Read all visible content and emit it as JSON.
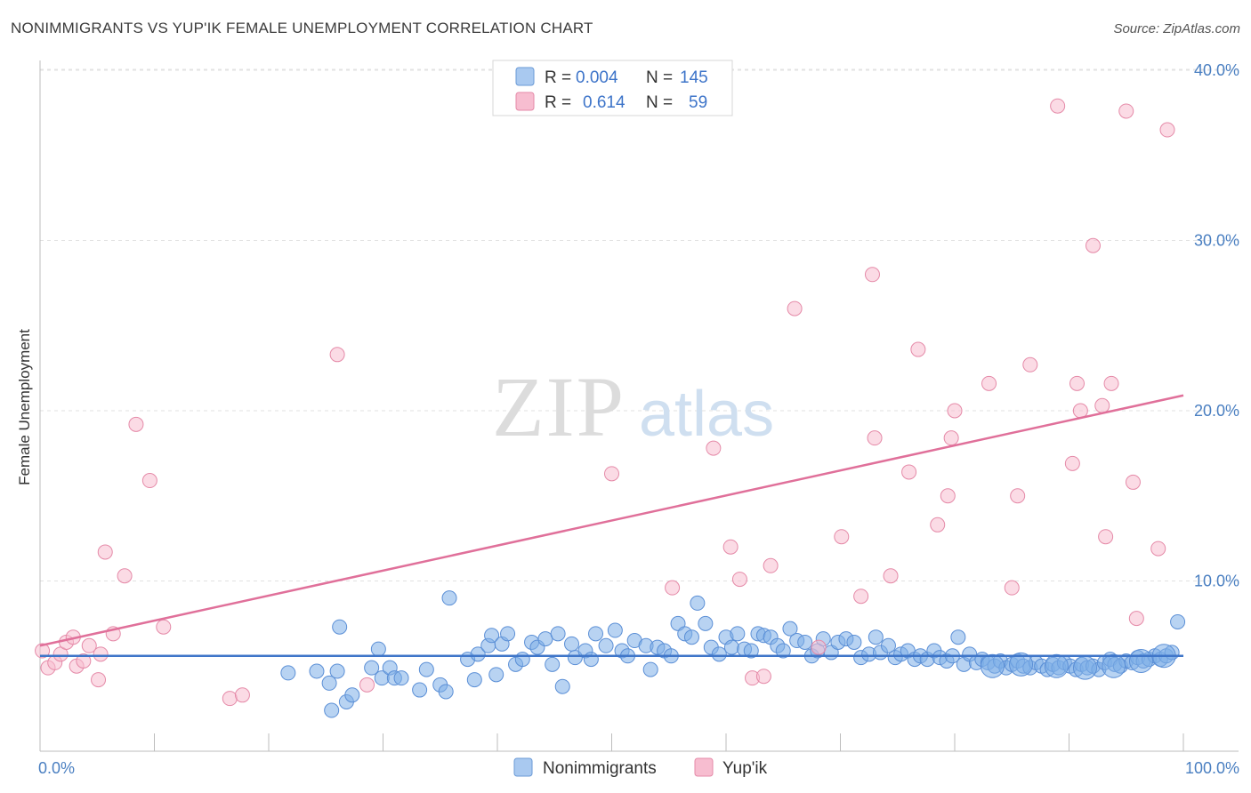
{
  "header": {
    "title": "NONIMMIGRANTS VS YUP'IK FEMALE UNEMPLOYMENT CORRELATION CHART",
    "source": "Source: ZipAtlas.com"
  },
  "watermark": {
    "zip": "ZIP",
    "atlas": "atlas"
  },
  "legend_top": {
    "rows": [
      {
        "r_label": "R =",
        "r_value": "0.004",
        "n_label": "N =",
        "n_value": "145",
        "color": "#a9c9f0",
        "border": "#6a9ad6"
      },
      {
        "r_label": "R =",
        "r_value": "0.614",
        "n_label": "N =",
        "n_value": "59",
        "color": "#f7bdd0",
        "border": "#e58aa8"
      }
    ]
  },
  "legend_bottom": {
    "items": [
      {
        "label": "Nonimmigrants",
        "color": "#a9c9f0",
        "border": "#6a9ad6"
      },
      {
        "label": "Yup'ik",
        "color": "#f7bdd0",
        "border": "#e58aa8"
      }
    ]
  },
  "chart_data": {
    "type": "scatter",
    "title": "NONIMMIGRANTS VS YUP'IK FEMALE UNEMPLOYMENT CORRELATION CHART",
    "xlabel": "",
    "ylabel": "Female Unemployment",
    "xlim": [
      0,
      100
    ],
    "ylim": [
      0,
      42
    ],
    "x_tick_labels": [
      "0.0%",
      "100.0%"
    ],
    "y_ticks": [
      10,
      20,
      30,
      40
    ],
    "y_tick_labels": [
      "10.0%",
      "20.0%",
      "30.0%",
      "40.0%"
    ],
    "grid": true,
    "legend_position": "top-center",
    "series": [
      {
        "name": "Nonimmigrants",
        "color": "#7eaee8",
        "stroke": "#5b8fd6",
        "r": "0.004",
        "n": "145",
        "trend": {
          "x": [
            0,
            100
          ],
          "y": [
            5.6,
            5.6
          ],
          "color": "#3f76c9"
        },
        "points": [
          [
            21.7,
            4.6,
            1
          ],
          [
            24.2,
            4.7,
            1
          ],
          [
            25.3,
            4.0,
            1
          ],
          [
            26.0,
            4.7,
            1
          ],
          [
            26.2,
            7.3,
            1
          ],
          [
            25.5,
            2.4,
            1
          ],
          [
            26.8,
            2.9,
            1
          ],
          [
            27.3,
            3.3,
            1
          ],
          [
            29.0,
            4.9,
            1
          ],
          [
            29.6,
            6.0,
            1
          ],
          [
            29.9,
            4.3,
            1
          ],
          [
            30.6,
            4.9,
            1
          ],
          [
            31.0,
            4.3,
            1
          ],
          [
            31.6,
            4.3,
            1
          ],
          [
            33.2,
            3.6,
            1
          ],
          [
            33.8,
            4.8,
            1
          ],
          [
            35.0,
            3.9,
            1
          ],
          [
            35.5,
            3.5,
            1
          ],
          [
            35.8,
            9.0,
            1
          ],
          [
            37.4,
            5.4,
            1
          ],
          [
            38.0,
            4.2,
            1
          ],
          [
            38.3,
            5.7,
            1
          ],
          [
            39.2,
            6.2,
            1
          ],
          [
            39.5,
            6.8,
            1
          ],
          [
            39.9,
            4.5,
            1
          ],
          [
            40.4,
            6.3,
            1
          ],
          [
            40.9,
            6.9,
            1
          ],
          [
            41.6,
            5.1,
            1
          ],
          [
            42.2,
            5.4,
            1
          ],
          [
            43.0,
            6.4,
            1
          ],
          [
            43.5,
            6.1,
            1
          ],
          [
            44.2,
            6.6,
            1
          ],
          [
            44.8,
            5.1,
            1
          ],
          [
            45.3,
            6.9,
            1
          ],
          [
            45.7,
            3.8,
            1
          ],
          [
            46.5,
            6.3,
            1
          ],
          [
            46.8,
            5.5,
            1
          ],
          [
            47.7,
            5.9,
            1
          ],
          [
            48.2,
            5.4,
            1
          ],
          [
            48.6,
            6.9,
            1
          ],
          [
            49.5,
            6.2,
            1
          ],
          [
            50.3,
            7.1,
            1
          ],
          [
            50.9,
            5.9,
            1
          ],
          [
            51.4,
            5.6,
            1
          ],
          [
            52.0,
            6.5,
            1
          ],
          [
            53.0,
            6.2,
            1
          ],
          [
            53.4,
            4.8,
            1
          ],
          [
            54.0,
            6.1,
            1
          ],
          [
            54.6,
            5.9,
            1
          ],
          [
            55.2,
            5.6,
            1
          ],
          [
            55.8,
            7.5,
            1
          ],
          [
            56.4,
            6.9,
            1
          ],
          [
            57.0,
            6.7,
            1
          ],
          [
            57.5,
            8.7,
            1
          ],
          [
            58.2,
            7.5,
            1
          ],
          [
            58.7,
            6.1,
            1
          ],
          [
            59.4,
            5.7,
            1
          ],
          [
            60.0,
            6.7,
            1
          ],
          [
            60.5,
            6.1,
            1
          ],
          [
            61.0,
            6.9,
            1
          ],
          [
            61.6,
            6.0,
            1
          ],
          [
            62.2,
            5.9,
            1
          ],
          [
            62.8,
            6.9,
            1
          ],
          [
            63.3,
            6.8,
            1
          ],
          [
            63.9,
            6.7,
            1
          ],
          [
            64.5,
            6.2,
            1
          ],
          [
            65.0,
            5.9,
            1
          ],
          [
            65.6,
            7.2,
            1
          ],
          [
            66.2,
            6.5,
            1
          ],
          [
            66.9,
            6.4,
            1
          ],
          [
            67.5,
            5.6,
            1
          ],
          [
            68.0,
            5.9,
            1
          ],
          [
            68.5,
            6.6,
            1
          ],
          [
            69.2,
            5.8,
            1
          ],
          [
            69.8,
            6.4,
            1
          ],
          [
            70.5,
            6.6,
            1
          ],
          [
            71.2,
            6.4,
            1
          ],
          [
            71.8,
            5.5,
            1
          ],
          [
            72.5,
            5.7,
            1
          ],
          [
            73.1,
            6.7,
            1
          ],
          [
            73.5,
            5.8,
            1
          ],
          [
            74.2,
            6.2,
            1
          ],
          [
            74.8,
            5.5,
            1
          ],
          [
            75.3,
            5.7,
            1
          ],
          [
            75.9,
            5.9,
            1
          ],
          [
            76.5,
            5.4,
            1
          ],
          [
            77.0,
            5.6,
            1
          ],
          [
            77.6,
            5.4,
            1
          ],
          [
            78.2,
            5.9,
            1
          ],
          [
            78.7,
            5.5,
            1
          ],
          [
            79.3,
            5.3,
            1
          ],
          [
            79.8,
            5.6,
            1
          ],
          [
            80.3,
            6.7,
            1
          ],
          [
            80.8,
            5.1,
            1
          ],
          [
            81.3,
            5.7,
            1
          ],
          [
            81.9,
            5.2,
            1
          ],
          [
            82.4,
            5.4,
            1
          ],
          [
            82.9,
            5.2,
            1
          ],
          [
            83.5,
            5.0,
            1
          ],
          [
            84.0,
            5.3,
            1
          ],
          [
            84.5,
            4.9,
            1
          ],
          [
            85.0,
            5.1,
            1
          ],
          [
            85.5,
            5.3,
            1
          ],
          [
            86.0,
            5.0,
            1
          ],
          [
            86.6,
            4.9,
            1
          ],
          [
            87.1,
            5.2,
            1
          ],
          [
            87.6,
            5.0,
            1
          ],
          [
            88.1,
            4.8,
            1
          ],
          [
            88.6,
            5.1,
            1
          ],
          [
            89.1,
            4.9,
            1
          ],
          [
            89.6,
            5.2,
            1
          ],
          [
            90.1,
            5.0,
            1
          ],
          [
            90.6,
            4.8,
            1
          ],
          [
            91.1,
            5.1,
            1
          ],
          [
            91.6,
            4.9,
            1
          ],
          [
            92.1,
            5.0,
            1
          ],
          [
            92.6,
            4.8,
            1
          ],
          [
            93.1,
            5.2,
            1
          ],
          [
            93.6,
            5.4,
            1
          ],
          [
            94.0,
            5.1,
            1
          ],
          [
            94.5,
            5.0,
            1
          ],
          [
            95.0,
            5.3,
            1
          ],
          [
            95.5,
            5.2,
            1
          ],
          [
            96.0,
            5.5,
            1
          ],
          [
            96.5,
            5.3,
            1
          ],
          [
            97.0,
            5.4,
            1
          ],
          [
            97.5,
            5.6,
            1
          ],
          [
            98.0,
            5.4,
            1
          ],
          [
            98.5,
            5.6,
            1
          ],
          [
            99.0,
            5.8,
            1
          ],
          [
            99.5,
            7.6,
            1
          ],
          [
            83.3,
            5.0,
            2
          ],
          [
            85.8,
            5.1,
            2
          ],
          [
            88.9,
            5.0,
            2
          ],
          [
            91.4,
            4.9,
            2
          ],
          [
            93.9,
            5.0,
            2
          ],
          [
            96.3,
            5.3,
            2
          ],
          [
            98.3,
            5.6,
            2
          ]
        ]
      },
      {
        "name": "Yup'ik",
        "color": "#f7bdd0",
        "stroke": "#e58aa8",
        "r": "0.614",
        "n": "59",
        "trend": {
          "x": [
            0,
            100
          ],
          "y": [
            6.2,
            20.9
          ],
          "color": "#e0709a"
        },
        "points": [
          [
            0.2,
            5.9,
            1
          ],
          [
            0.7,
            4.9,
            1
          ],
          [
            1.3,
            5.2,
            1
          ],
          [
            1.8,
            5.7,
            1
          ],
          [
            2.3,
            6.4,
            1
          ],
          [
            2.9,
            6.7,
            1
          ],
          [
            3.2,
            5.0,
            1
          ],
          [
            3.8,
            5.3,
            1
          ],
          [
            4.3,
            6.2,
            1
          ],
          [
            5.1,
            4.2,
            1
          ],
          [
            5.3,
            5.7,
            1
          ],
          [
            5.7,
            11.7,
            1
          ],
          [
            6.4,
            6.9,
            1
          ],
          [
            7.4,
            10.3,
            1
          ],
          [
            8.4,
            19.2,
            1
          ],
          [
            9.6,
            15.9,
            1
          ],
          [
            10.8,
            7.3,
            1
          ],
          [
            16.6,
            3.1,
            1
          ],
          [
            17.7,
            3.3,
            1
          ],
          [
            26.0,
            23.3,
            1
          ],
          [
            28.6,
            3.9,
            1
          ],
          [
            50.0,
            16.3,
            1
          ],
          [
            55.3,
            9.6,
            1
          ],
          [
            58.9,
            17.8,
            1
          ],
          [
            60.4,
            12.0,
            1
          ],
          [
            61.2,
            10.1,
            1
          ],
          [
            62.3,
            4.3,
            1
          ],
          [
            63.3,
            4.4,
            1
          ],
          [
            63.9,
            10.9,
            1
          ],
          [
            66.0,
            26.0,
            1
          ],
          [
            68.1,
            6.1,
            1
          ],
          [
            70.1,
            12.6,
            1
          ],
          [
            71.8,
            9.1,
            1
          ],
          [
            72.8,
            28.0,
            1
          ],
          [
            73.0,
            18.4,
            1
          ],
          [
            74.4,
            10.3,
            1
          ],
          [
            76.0,
            16.4,
            1
          ],
          [
            76.8,
            23.6,
            1
          ],
          [
            78.5,
            13.3,
            1
          ],
          [
            79.4,
            15.0,
            1
          ],
          [
            79.7,
            18.4,
            1
          ],
          [
            80.0,
            20.0,
            1
          ],
          [
            83.0,
            21.6,
            1
          ],
          [
            85.0,
            9.6,
            1
          ],
          [
            85.5,
            15.0,
            1
          ],
          [
            86.6,
            22.7,
            1
          ],
          [
            89.0,
            37.9,
            1
          ],
          [
            90.3,
            16.9,
            1
          ],
          [
            90.7,
            21.6,
            1
          ],
          [
            91.0,
            20.0,
            1
          ],
          [
            92.1,
            29.7,
            1
          ],
          [
            92.9,
            20.3,
            1
          ],
          [
            93.2,
            12.6,
            1
          ],
          [
            93.7,
            21.6,
            1
          ],
          [
            95.0,
            37.6,
            1
          ],
          [
            95.6,
            15.8,
            1
          ],
          [
            95.9,
            7.8,
            1
          ],
          [
            97.8,
            11.9,
            1
          ],
          [
            98.6,
            36.5,
            1
          ]
        ]
      }
    ]
  }
}
